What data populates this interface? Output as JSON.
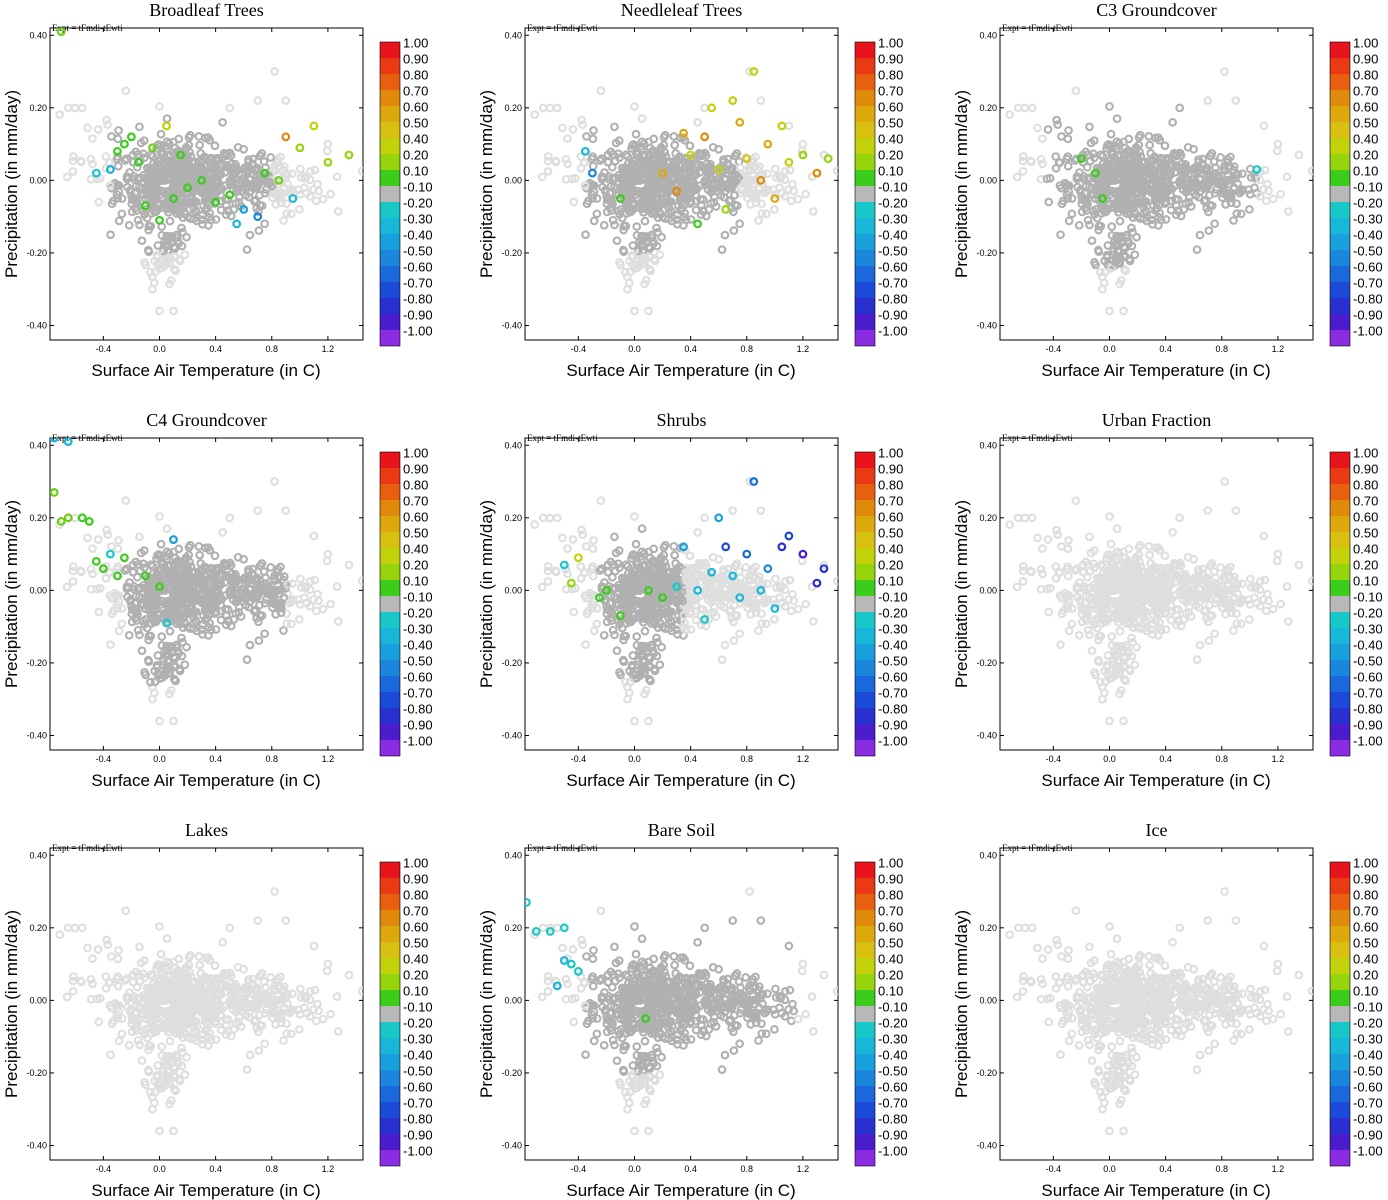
{
  "figure": {
    "expt_label": "Expt = tFmdi-tEwti",
    "x_axis_label": "Surface Air Temperature (in C)",
    "y_axis_label": "Precipitation (in mm/day)",
    "x_ticks": [
      -0.4,
      0.0,
      0.4,
      0.8,
      1.2
    ],
    "x_tick_labels": [
      "-0.4",
      "0.0",
      "0.4",
      "0.8",
      "1.2"
    ],
    "y_ticks": [
      0.4,
      0.2,
      0.0,
      -0.2,
      -0.4
    ],
    "y_tick_labels": [
      "0.40",
      "0.20",
      "0.00",
      "-0.20",
      "-0.40"
    ],
    "colorbar": {
      "labels": [
        "1.00",
        "0.90",
        "0.80",
        "0.70",
        "0.60",
        "0.50",
        "0.40",
        "0.20",
        "0.10",
        "-0.10",
        "-0.20",
        "-0.30",
        "-0.40",
        "-0.50",
        "-0.60",
        "-0.70",
        "-0.80",
        "-0.90",
        "-1.00"
      ],
      "colors": [
        "#e8141c",
        "#ea3a14",
        "#e85f10",
        "#e08a0c",
        "#dca80c",
        "#d8c010",
        "#c2d10a",
        "#96d40c",
        "#3ccc1c",
        "#b8b8b8",
        "#18c8c8",
        "#18b6d8",
        "#18a0dc",
        "#1a86dc",
        "#1a68dc",
        "#1c4ad8",
        "#2830d0",
        "#4a1ccc",
        "#8a2ce2"
      ]
    }
  },
  "chart_data": [
    {
      "type": "scatter",
      "title": "Broadleaf Trees",
      "xlabel": "Surface Air Temperature (in C)",
      "ylabel": "Precipitation (in mm/day)",
      "xlim": [
        -0.78,
        1.45
      ],
      "ylim": [
        -0.44,
        0.42
      ],
      "colored_points": [
        [
          -0.7,
          0.41,
          "#6dd010"
        ],
        [
          -0.45,
          0.02,
          "#20c0d0"
        ],
        [
          -0.35,
          0.03,
          "#18b0d8"
        ],
        [
          -0.3,
          0.08,
          "#3ccc1c"
        ],
        [
          -0.25,
          0.1,
          "#3ccc1c"
        ],
        [
          -0.2,
          0.12,
          "#3ccc1c"
        ],
        [
          -0.15,
          0.05,
          "#3ccc1c"
        ],
        [
          -0.1,
          -0.07,
          "#3ccc1c"
        ],
        [
          -0.05,
          0.09,
          "#6dd010"
        ],
        [
          0.0,
          -0.11,
          "#3ccc1c"
        ],
        [
          0.05,
          0.15,
          "#c2d10a"
        ],
        [
          0.1,
          -0.05,
          "#3ccc1c"
        ],
        [
          0.15,
          0.07,
          "#3ccc1c"
        ],
        [
          0.2,
          -0.02,
          "#3ccc1c"
        ],
        [
          0.3,
          0.0,
          "#3ccc1c"
        ],
        [
          0.4,
          -0.06,
          "#3ccc1c"
        ],
        [
          0.5,
          -0.04,
          "#3ccc1c"
        ],
        [
          0.55,
          -0.12,
          "#18b6d8"
        ],
        [
          0.6,
          -0.08,
          "#18a0dc"
        ],
        [
          0.7,
          -0.1,
          "#1a86dc"
        ],
        [
          0.75,
          0.02,
          "#3ccc1c"
        ],
        [
          0.85,
          0.0,
          "#6dd010"
        ],
        [
          0.9,
          0.12,
          "#e08a0c"
        ],
        [
          0.95,
          -0.05,
          "#18b6d8"
        ],
        [
          1.0,
          0.09,
          "#96d40c"
        ],
        [
          1.1,
          0.15,
          "#c2d10a"
        ],
        [
          1.2,
          0.05,
          "#96d40c"
        ],
        [
          1.35,
          0.07,
          "#96d40c"
        ]
      ]
    },
    {
      "type": "scatter",
      "title": "Needleleaf Trees",
      "xlabel": "Surface Air Temperature (in C)",
      "ylabel": "Precipitation (in mm/day)",
      "xlim": [
        -0.78,
        1.45
      ],
      "ylim": [
        -0.44,
        0.42
      ],
      "colored_points": [
        [
          -0.35,
          0.08,
          "#18b6d8"
        ],
        [
          -0.3,
          0.02,
          "#1a86dc"
        ],
        [
          -0.1,
          -0.05,
          "#3ccc1c"
        ],
        [
          0.2,
          0.02,
          "#dca80c"
        ],
        [
          0.3,
          -0.03,
          "#e08a0c"
        ],
        [
          0.35,
          0.13,
          "#dca80c"
        ],
        [
          0.4,
          0.07,
          "#c2d10a"
        ],
        [
          0.45,
          -0.12,
          "#3ccc1c"
        ],
        [
          0.5,
          0.12,
          "#e08a0c"
        ],
        [
          0.55,
          0.2,
          "#c2d10a"
        ],
        [
          0.6,
          0.03,
          "#c2d10a"
        ],
        [
          0.65,
          -0.08,
          "#96d40c"
        ],
        [
          0.7,
          0.22,
          "#c2d10a"
        ],
        [
          0.75,
          0.16,
          "#dca80c"
        ],
        [
          0.8,
          0.06,
          "#d8c010"
        ],
        [
          0.85,
          0.3,
          "#c2d10a"
        ],
        [
          0.9,
          0.0,
          "#e08a0c"
        ],
        [
          0.95,
          0.1,
          "#dca80c"
        ],
        [
          1.0,
          -0.05,
          "#dca80c"
        ],
        [
          1.05,
          0.15,
          "#c2d10a"
        ],
        [
          1.1,
          0.05,
          "#c2d10a"
        ],
        [
          1.2,
          0.07,
          "#96d40c"
        ],
        [
          1.3,
          0.02,
          "#e08a0c"
        ],
        [
          1.38,
          0.06,
          "#96d40c"
        ]
      ]
    },
    {
      "type": "scatter",
      "title": "C3 Groundcover",
      "xlabel": "Surface Air Temperature (in C)",
      "ylabel": "Precipitation (in mm/day)",
      "xlim": [
        -0.78,
        1.45
      ],
      "ylim": [
        -0.44,
        0.42
      ],
      "colored_points": [
        [
          -0.2,
          0.06,
          "#3ccc1c"
        ],
        [
          -0.1,
          0.02,
          "#3ccc1c"
        ],
        [
          -0.05,
          -0.05,
          "#3ccc1c"
        ],
        [
          1.05,
          0.03,
          "#18c8c8"
        ]
      ]
    },
    {
      "type": "scatter",
      "title": "C4 Groundcover",
      "xlabel": "Surface Air Temperature (in C)",
      "ylabel": "Precipitation (in mm/day)",
      "xlim": [
        -0.78,
        1.45
      ],
      "ylim": [
        -0.44,
        0.42
      ],
      "colored_points": [
        [
          -0.75,
          0.42,
          "#18b6d8"
        ],
        [
          -0.65,
          0.41,
          "#18b6d8"
        ],
        [
          -0.75,
          0.27,
          "#6dd010"
        ],
        [
          -0.7,
          0.19,
          "#6dd010"
        ],
        [
          -0.65,
          0.2,
          "#6dd010"
        ],
        [
          -0.55,
          0.2,
          "#3ccc1c"
        ],
        [
          -0.5,
          0.19,
          "#3ccc1c"
        ],
        [
          -0.45,
          0.08,
          "#3ccc1c"
        ],
        [
          -0.4,
          0.06,
          "#3ccc1c"
        ],
        [
          -0.35,
          0.1,
          "#18c8c8"
        ],
        [
          -0.3,
          0.04,
          "#3ccc1c"
        ],
        [
          -0.25,
          0.09,
          "#3ccc1c"
        ],
        [
          -0.1,
          0.04,
          "#3ccc1c"
        ],
        [
          0.0,
          0.01,
          "#3ccc1c"
        ],
        [
          0.05,
          -0.09,
          "#18c8c8"
        ],
        [
          0.1,
          0.14,
          "#18a0dc"
        ]
      ]
    },
    {
      "type": "scatter",
      "title": "Shrubs",
      "xlabel": "Surface Air Temperature (in C)",
      "ylabel": "Precipitation (in mm/day)",
      "xlim": [
        -0.78,
        1.45
      ],
      "ylim": [
        -0.44,
        0.42
      ],
      "colored_points": [
        [
          -0.5,
          0.07,
          "#18c8c8"
        ],
        [
          -0.45,
          0.02,
          "#96d40c"
        ],
        [
          -0.4,
          0.09,
          "#c2d10a"
        ],
        [
          -0.25,
          -0.02,
          "#3ccc1c"
        ],
        [
          -0.2,
          0.0,
          "#3ccc1c"
        ],
        [
          -0.1,
          -0.07,
          "#3ccc1c"
        ],
        [
          0.1,
          0.0,
          "#3ccc1c"
        ],
        [
          0.2,
          -0.02,
          "#3ccc1c"
        ],
        [
          0.3,
          0.01,
          "#18c8c8"
        ],
        [
          0.35,
          0.12,
          "#18a0dc"
        ],
        [
          0.45,
          0.0,
          "#18b6d8"
        ],
        [
          0.5,
          -0.08,
          "#18c8c8"
        ],
        [
          0.55,
          0.05,
          "#18b6d8"
        ],
        [
          0.6,
          0.2,
          "#18a0dc"
        ],
        [
          0.65,
          0.12,
          "#1c4ad8"
        ],
        [
          0.7,
          0.04,
          "#18b6d8"
        ],
        [
          0.75,
          -0.02,
          "#18b6d8"
        ],
        [
          0.8,
          0.1,
          "#1a68dc"
        ],
        [
          0.85,
          0.3,
          "#1a68dc"
        ],
        [
          0.9,
          0.0,
          "#18b6d8"
        ],
        [
          0.95,
          0.06,
          "#1a86dc"
        ],
        [
          1.0,
          -0.05,
          "#18b6d8"
        ],
        [
          1.05,
          0.12,
          "#2830d0"
        ],
        [
          1.1,
          0.15,
          "#1c4ad8"
        ],
        [
          1.2,
          0.1,
          "#4a1ccc"
        ],
        [
          1.3,
          0.02,
          "#2830d0"
        ],
        [
          1.35,
          0.06,
          "#2830d0"
        ]
      ]
    },
    {
      "type": "scatter",
      "title": "Urban Fraction",
      "xlabel": "Surface Air Temperature (in C)",
      "ylabel": "Precipitation (in mm/day)",
      "xlim": [
        -0.78,
        1.45
      ],
      "ylim": [
        -0.44,
        0.42
      ],
      "colored_points": []
    },
    {
      "type": "scatter",
      "title": "Lakes",
      "xlabel": "Surface Air Temperature (in C)",
      "ylabel": "Precipitation (in mm/day)",
      "xlim": [
        -0.78,
        1.45
      ],
      "ylim": [
        -0.44,
        0.42
      ],
      "colored_points": []
    },
    {
      "type": "scatter",
      "title": "Bare Soil",
      "xlabel": "Surface Air Temperature (in C)",
      "ylabel": "Precipitation (in mm/day)",
      "xlim": [
        -0.78,
        1.45
      ],
      "ylim": [
        -0.44,
        0.42
      ],
      "colored_points": [
        [
          -0.77,
          0.27,
          "#18c8c8"
        ],
        [
          -0.7,
          0.19,
          "#18c8c8"
        ],
        [
          -0.6,
          0.19,
          "#18c8c8"
        ],
        [
          -0.5,
          0.2,
          "#18c8c8"
        ],
        [
          -0.5,
          0.11,
          "#18b6d8"
        ],
        [
          -0.45,
          0.1,
          "#18c8c8"
        ],
        [
          -0.4,
          0.08,
          "#18c8c8"
        ],
        [
          -0.55,
          0.04,
          "#18b6d8"
        ],
        [
          0.08,
          -0.05,
          "#3ccc1c"
        ]
      ]
    },
    {
      "type": "scatter",
      "title": "Ice",
      "xlabel": "Surface Air Temperature (in C)",
      "ylabel": "Precipitation (in mm/day)",
      "xlim": [
        -0.78,
        1.45
      ],
      "ylim": [
        -0.44,
        0.42
      ],
      "colored_points": []
    }
  ]
}
